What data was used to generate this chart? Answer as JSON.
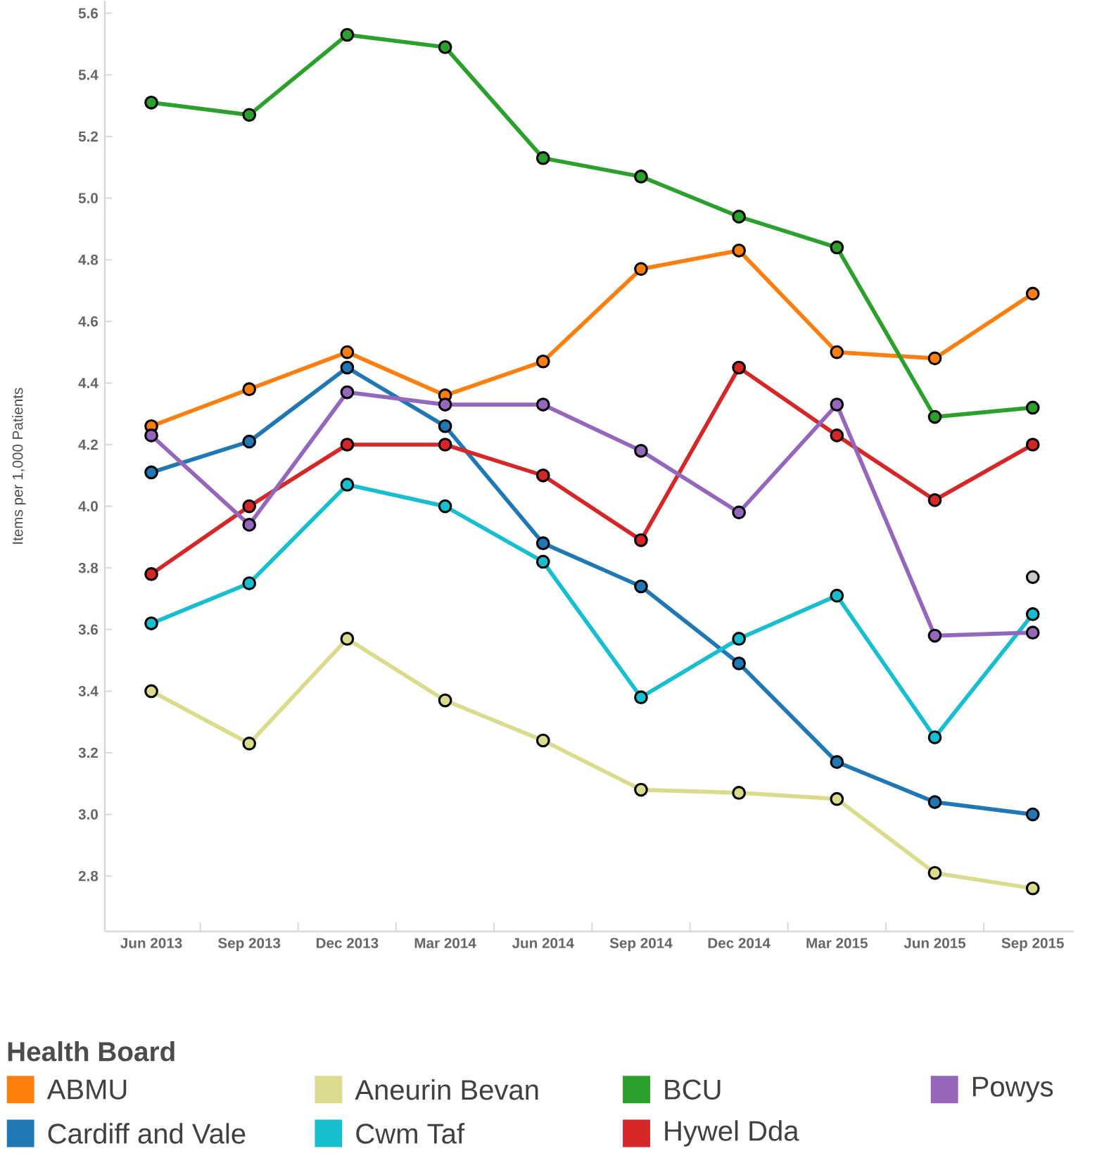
{
  "chart_data": {
    "type": "line",
    "ylabel": "Items per 1,000 Patients",
    "legend_title": "Health Board",
    "categories": [
      "Jun 2013",
      "Sep 2013",
      "Dec 2013",
      "Mar 2014",
      "Jun 2014",
      "Sep 2014",
      "Dec 2014",
      "Mar 2015",
      "Jun 2015",
      "Sep 2015"
    ],
    "series": [
      {
        "name": "ABMU",
        "color": "#ff7f0e",
        "values": [
          4.26,
          4.38,
          4.5,
          4.36,
          4.47,
          4.77,
          4.83,
          4.5,
          4.48,
          4.69
        ]
      },
      {
        "name": "Cardiff and Vale",
        "color": "#1f77b4",
        "values": [
          4.11,
          4.21,
          4.45,
          4.26,
          3.88,
          3.74,
          3.49,
          3.17,
          3.04,
          3.0
        ]
      },
      {
        "name": "Aneurin Bevan",
        "color": "#dbdb8d",
        "values": [
          3.4,
          3.23,
          3.57,
          3.37,
          3.24,
          3.08,
          3.07,
          3.05,
          2.81,
          2.76
        ]
      },
      {
        "name": "Cwm Taf",
        "color": "#17becf",
        "values": [
          3.62,
          3.75,
          4.07,
          4.0,
          3.82,
          3.38,
          3.57,
          3.71,
          3.25,
          3.65
        ]
      },
      {
        "name": "BCU",
        "color": "#2ca02c",
        "values": [
          5.31,
          5.27,
          5.53,
          5.49,
          5.13,
          5.07,
          4.94,
          4.84,
          4.29,
          4.32
        ]
      },
      {
        "name": "Hywel Dda",
        "color": "#d62728",
        "values": [
          3.78,
          4.0,
          4.2,
          4.2,
          4.1,
          3.89,
          4.45,
          4.23,
          4.02,
          4.2
        ]
      },
      {
        "name": "Powys",
        "color": "#9467bd",
        "values": [
          4.23,
          3.94,
          4.37,
          4.33,
          4.33,
          4.18,
          3.98,
          4.33,
          3.58,
          3.59
        ]
      },
      {
        "type": "scatter",
        "color": "#c7c7c7",
        "values": [
          null,
          null,
          null,
          null,
          null,
          null,
          null,
          null,
          null,
          3.77
        ]
      }
    ],
    "ylim": [
      2.62,
      5.64
    ],
    "yticks": [
      2.8,
      {
        "value": 3,
        "label": "3.0"
      },
      3.2,
      3.4,
      3.6,
      3.8,
      {
        "value": 4,
        "label": "4.0"
      },
      4.2,
      4.4,
      4.6,
      4.8,
      {
        "value": 5,
        "label": "5.0"
      },
      5.2,
      5.4,
      5.6
    ],
    "grid": false,
    "legend": "bottom left",
    "marker": "circle",
    "line_style": "solid"
  }
}
